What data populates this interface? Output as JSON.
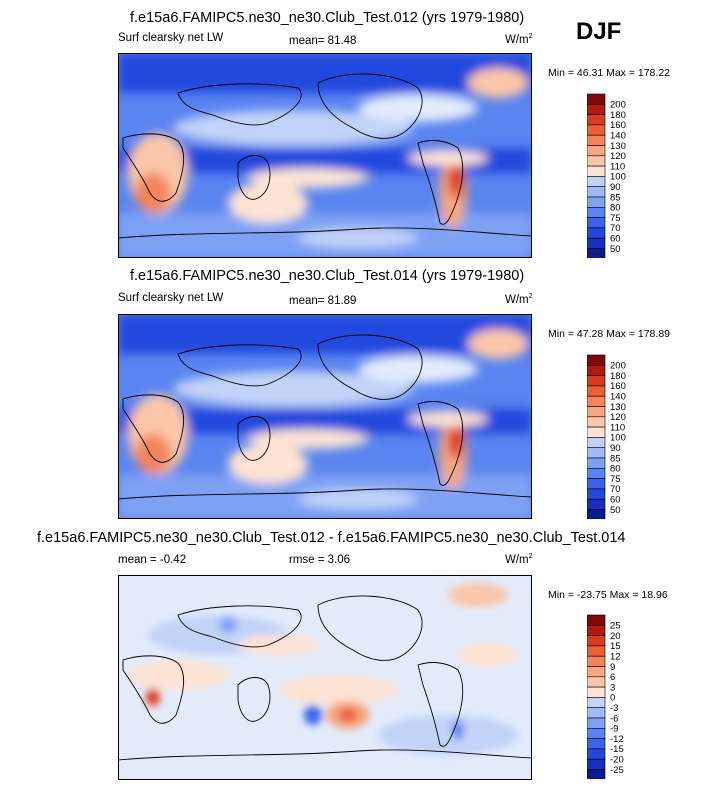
{
  "season": "DJF",
  "colors": {
    "abs_palette": [
      "#0a1a8f",
      "#1530c0",
      "#2448dd",
      "#3a63ea",
      "#5a84f0",
      "#7ea1f4",
      "#9fbaf5",
      "#c2d3f8",
      "#e3ebfb",
      "#fde3d3",
      "#fbc6a8",
      "#f7a781",
      "#f3855c",
      "#ec6038",
      "#dc3a1e",
      "#b11a10",
      "#7d0a08"
    ],
    "diff_palette": [
      "#0a1a8f",
      "#1530c0",
      "#2448dd",
      "#3a63ea",
      "#5a84f0",
      "#7ea1f4",
      "#9fbaf5",
      "#c2d3f8",
      "#e3ebfb",
      "#fde3d3",
      "#fbc6a8",
      "#f7a781",
      "#f3855c",
      "#ec6038",
      "#dc3a1e",
      "#b11a10",
      "#7d0a08"
    ]
  },
  "panels": [
    {
      "title": "f.e15a6.FAMIPC5.ne30_ne30.Club_Test.012 (yrs 1979-1980)",
      "left": "Surf clearsky net LW",
      "center": "mean=  81.48",
      "units": "W/m",
      "units_sup": "2",
      "minmax": "Min =  46.31 Max = 178.22",
      "colorbar": [
        "200",
        "180",
        "160",
        "140",
        "130",
        "120",
        "110",
        "100",
        "90",
        "85",
        "80",
        "75",
        "70",
        "60",
        "50"
      ]
    },
    {
      "title": "f.e15a6.FAMIPC5.ne30_ne30.Club_Test.014 (yrs 1979-1980)",
      "left": "Surf clearsky net LW",
      "center": "mean=  81.89",
      "units": "W/m",
      "units_sup": "2",
      "minmax": "Min =  47.28 Max = 178.89",
      "colorbar": [
        "200",
        "180",
        "160",
        "140",
        "130",
        "120",
        "110",
        "100",
        "90",
        "85",
        "80",
        "75",
        "70",
        "60",
        "50"
      ]
    },
    {
      "title": "f.e15a6.FAMIPC5.ne30_ne30.Club_Test.012 - f.e15a6.FAMIPC5.ne30_ne30.Club_Test.014",
      "left": "mean =  -0.42",
      "center": "rmse =   3.06",
      "units": "W/m",
      "units_sup": "2",
      "minmax": "Min = -23.75 Max =  18.96",
      "colorbar": [
        "25",
        "20",
        "15",
        "12",
        "9",
        "6",
        "3",
        "0",
        "-3",
        "-6",
        "-9",
        "-12",
        "-15",
        "-20",
        "-25"
      ]
    }
  ],
  "chart_data": [
    {
      "type": "heatmap",
      "title": "f.e15a6.FAMIPC5.ne30_ne30.Club_Test.012 (yrs 1979-1980)",
      "variable": "Surf clearsky net LW",
      "units": "W/m2",
      "mean": 81.48,
      "min": 46.31,
      "max": 178.22,
      "levels": [
        50,
        60,
        70,
        75,
        80,
        85,
        90,
        100,
        110,
        120,
        130,
        140,
        160,
        180,
        200
      ]
    },
    {
      "type": "heatmap",
      "title": "f.e15a6.FAMIPC5.ne30_ne30.Club_Test.014 (yrs 1979-1980)",
      "variable": "Surf clearsky net LW",
      "units": "W/m2",
      "mean": 81.89,
      "min": 47.28,
      "max": 178.89,
      "levels": [
        50,
        60,
        70,
        75,
        80,
        85,
        90,
        100,
        110,
        120,
        130,
        140,
        160,
        180,
        200
      ]
    },
    {
      "type": "heatmap",
      "title": "f.e15a6.FAMIPC5.ne30_ne30.Club_Test.012 - f.e15a6.FAMIPC5.ne30_ne30.Club_Test.014",
      "units": "W/m2",
      "mean": -0.42,
      "rmse": 3.06,
      "min": -23.75,
      "max": 18.96,
      "levels": [
        -25,
        -20,
        -15,
        -12,
        -9,
        -6,
        -3,
        0,
        3,
        6,
        9,
        12,
        15,
        20,
        25
      ]
    }
  ]
}
